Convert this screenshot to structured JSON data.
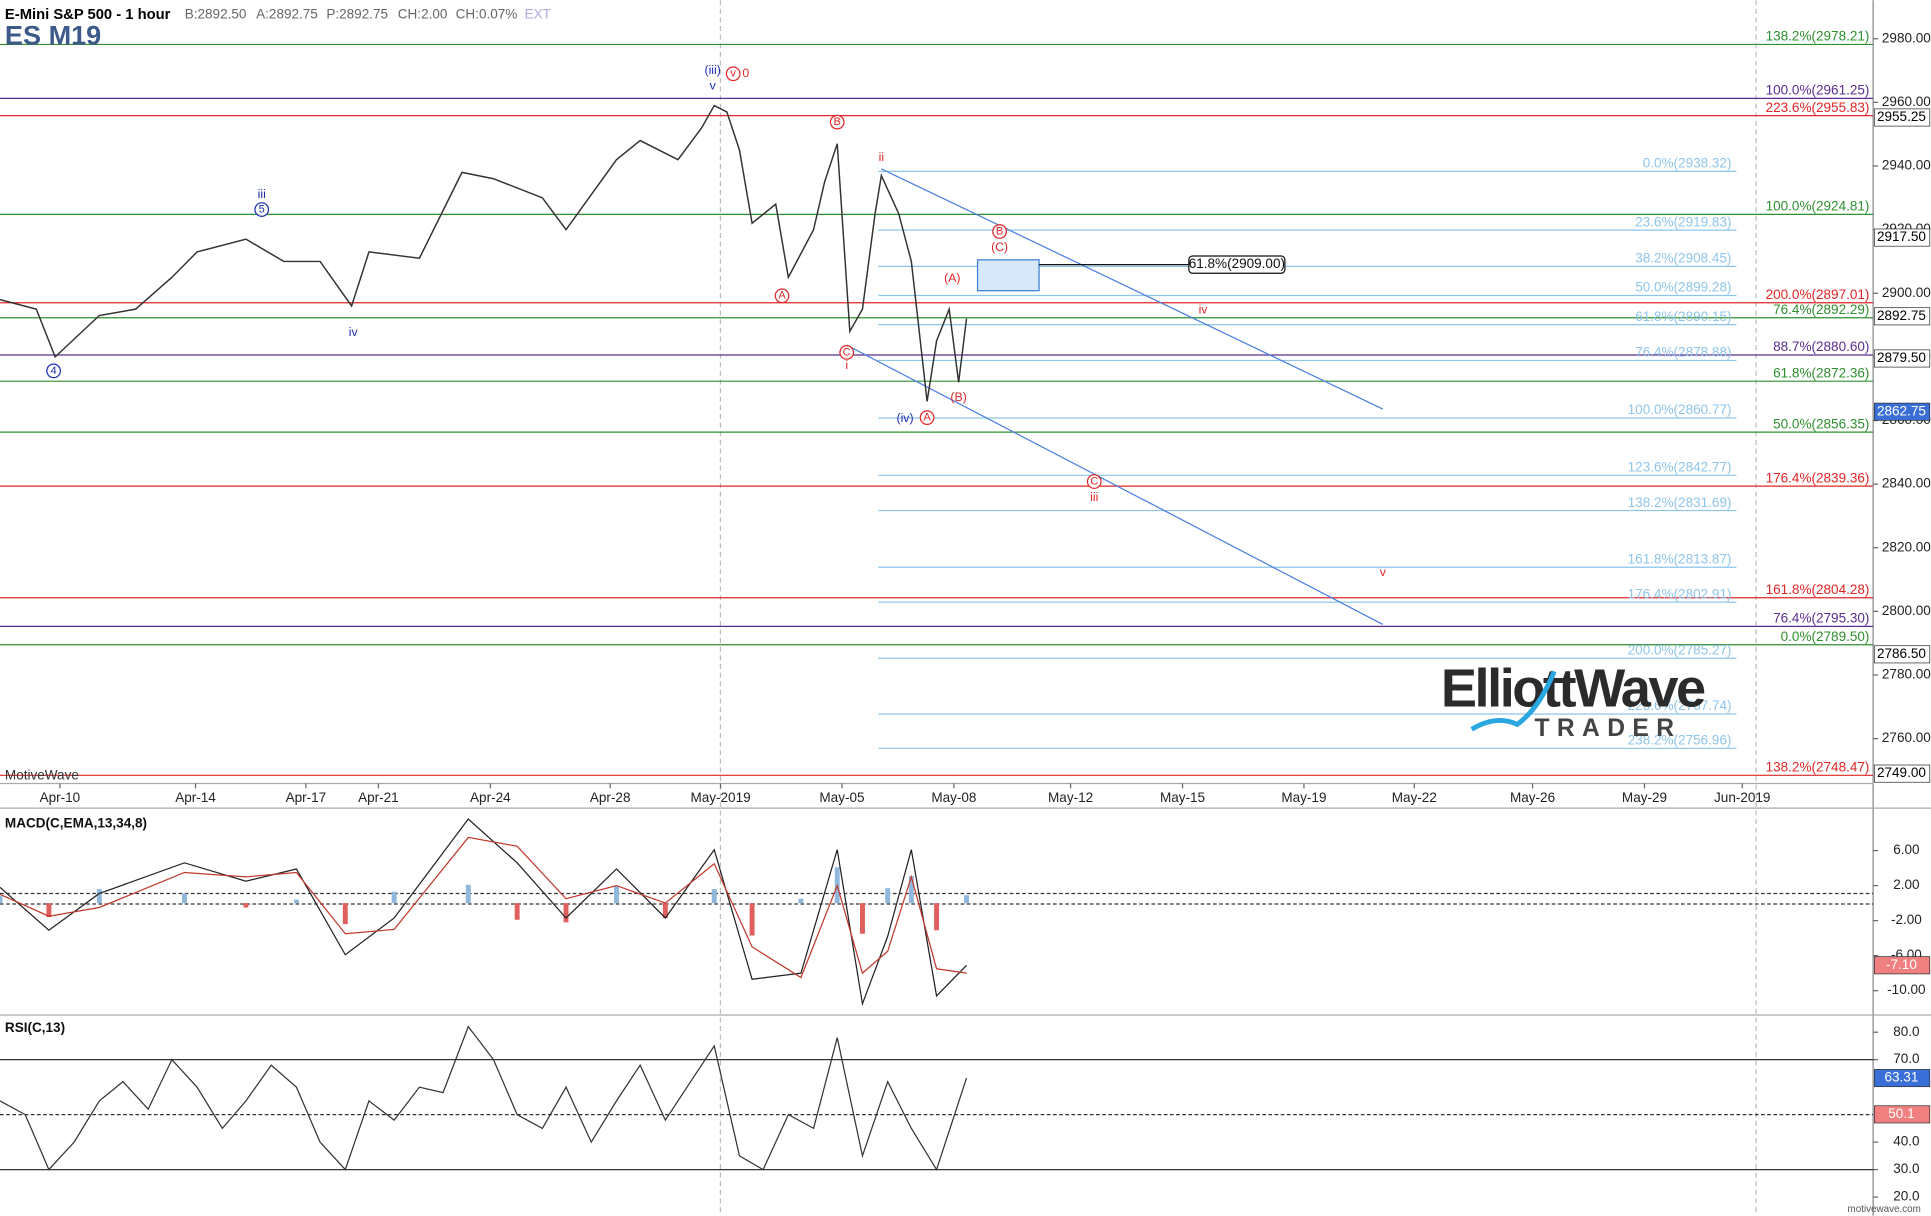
{
  "header": {
    "title": "E-Mini S&P 500 - 1 hour",
    "bid": "B:2892.50",
    "ask": "A:2892.75",
    "price": "P:2892.75",
    "change": "CH:2.00",
    "change_pct": "CH:0.07%",
    "ext": "EXT",
    "symbol": "ES M19",
    "watermark": "MotiveWave",
    "footer": "motivewave.com"
  },
  "logo": {
    "title": "ElliottWave",
    "subtitle": "TRADER"
  },
  "chart_data": [
    {
      "type": "line",
      "xlim": [
        0,
        1188
      ],
      "ylim": [
        2745.9,
        2992.1
      ],
      "yticks": [
        {
          "value": 2760,
          "label": "2760.00"
        },
        {
          "value": 2780,
          "label": "2780.00"
        },
        {
          "value": 2800,
          "label": "2800.00"
        },
        {
          "value": 2820,
          "label": "2820.00"
        },
        {
          "value": 2840,
          "label": "2840.00"
        },
        {
          "value": 2860,
          "label": "2860.00"
        },
        {
          "value": 2880,
          "label": "2880.00"
        },
        {
          "value": 2900,
          "label": "2900.00"
        },
        {
          "value": 2920,
          "label": "2920.00"
        },
        {
          "value": 2940,
          "label": "2940.00"
        },
        {
          "value": 2960,
          "label": "2960.00"
        },
        {
          "value": 2980,
          "label": "2980.00"
        }
      ],
      "xticks": [
        {
          "value": 38,
          "label": "Apr-10"
        },
        {
          "value": 124,
          "label": "Apr-14"
        },
        {
          "value": 194,
          "label": "Apr-17"
        },
        {
          "value": 240,
          "label": "Apr-21"
        },
        {
          "value": 311,
          "label": "Apr-24"
        },
        {
          "value": 387,
          "label": "Apr-28"
        },
        {
          "value": 457,
          "label": "May-2019"
        },
        {
          "value": 534,
          "label": "May-05"
        },
        {
          "value": 605,
          "label": "May-08"
        },
        {
          "value": 679,
          "label": "May-12"
        },
        {
          "value": 750,
          "label": "May-15"
        },
        {
          "value": 827,
          "label": "May-19"
        },
        {
          "value": 897,
          "label": "May-22"
        },
        {
          "value": 972,
          "label": "May-26"
        },
        {
          "value": 1043,
          "label": "May-29"
        },
        {
          "value": 1105,
          "label": "Jun-2019"
        }
      ],
      "series": [
        {
          "color": "#333333",
          "x": [
            0,
            23,
            35,
            63,
            86,
            109,
            125,
            156,
            180,
            203,
            223,
            234,
            266,
            293,
            313,
            344,
            359,
            391,
            406,
            430,
            445,
            453,
            461,
            469,
            477,
            492,
            500,
            516,
            523,
            531,
            539,
            547,
            555,
            559,
            570,
            578,
            588,
            594,
            602,
            608,
            613
          ],
          "values": [
            2898,
            2895,
            2880,
            2893,
            2895,
            2905,
            2913,
            2917,
            2910,
            2910,
            2896,
            2913,
            2911,
            2938,
            2936,
            2930,
            2920,
            2942,
            2948,
            2942,
            2952,
            2959,
            2957,
            2945,
            2922,
            2928,
            2905,
            2920,
            2935,
            2947,
            2888,
            2895,
            2925,
            2937,
            2925,
            2910,
            2866,
            2885,
            2895,
            2872,
            2892
          ]
        }
      ],
      "level_sets": [
        {
          "color": "#2f8f2f",
          "levels": [
            {
              "value": 2978.21,
              "label": "138.2%(2978.21)"
            },
            {
              "value": 2924.81,
              "label": "100.0%(2924.81)"
            },
            {
              "value": 2892.29,
              "label": "76.4%(2892.29)"
            },
            {
              "value": 2872.36,
              "label": "61.8%(2872.36)"
            },
            {
              "value": 2856.35,
              "label": "50.0%(2856.35)"
            },
            {
              "value": 2789.5,
              "label": "0.0%(2789.50)"
            }
          ]
        },
        {
          "color": "#e02626",
          "levels": [
            {
              "value": 2955.83,
              "label": "223.6%(2955.83)"
            },
            {
              "value": 2897.01,
              "label": "200.0%(2897.01)"
            },
            {
              "value": 2839.36,
              "label": "176.4%(2839.36)"
            },
            {
              "value": 2804.28,
              "label": "161.8%(2804.28)"
            },
            {
              "value": 2748.47,
              "label": "138.2%(2748.47)"
            }
          ]
        },
        {
          "color": "#5a2d91",
          "levels": [
            {
              "value": 2961.25,
              "label": "100.0%(2961.25)"
            },
            {
              "value": 2880.6,
              "label": "88.7%(2880.60)"
            },
            {
              "value": 2795.3,
              "label": "76.4%(2795.30)"
            }
          ]
        },
        {
          "color": "#8ec5ea",
          "start": 557,
          "levels": [
            {
              "value": 2938.32,
              "label": "0.0%(2938.32)"
            },
            {
              "value": 2919.83,
              "label": "23.6%(2919.83)"
            },
            {
              "value": 2908.45,
              "label": "38.2%(2908.45)"
            },
            {
              "value": 2899.28,
              "label": "50.0%(2899.28)"
            },
            {
              "value": 2890.15,
              "label": "61.8%(2890.15)"
            },
            {
              "value": 2878.88,
              "label": "76.4%(2878.88)"
            },
            {
              "value": 2860.77,
              "label": "100.0%(2860.77)"
            },
            {
              "value": 2842.77,
              "label": "123.6%(2842.77)"
            },
            {
              "value": 2831.69,
              "label": "138.2%(2831.69)"
            },
            {
              "value": 2813.87,
              "label": "161.8%(2813.87)"
            },
            {
              "value": 2802.91,
              "label": "176.4%(2802.91)"
            },
            {
              "value": 2785.27,
              "label": "200.0%(2785.27)"
            },
            {
              "value": 2767.74,
              "label": "223.6%(2767.74)"
            },
            {
              "value": 2756.96,
              "label": "238.2%(2756.96)"
            }
          ]
        }
      ],
      "price_tags": [
        {
          "value": 2955.25,
          "label": "2955.25",
          "color": "#ffffff"
        },
        {
          "value": 2917.5,
          "label": "2917.50",
          "color": "#ffffff"
        },
        {
          "value": 2892.75,
          "label": "2892.75",
          "color": "#ffffff"
        },
        {
          "value": 2879.5,
          "label": "2879.50",
          "color": "#ffffff"
        },
        {
          "value": 2862.75,
          "label": "2862.75",
          "color": "#3a6fd8"
        },
        {
          "value": 2786.5,
          "label": "2786.50",
          "color": "#ffffff"
        },
        {
          "value": 2749,
          "label": "2749.00",
          "color": "#ffffff"
        }
      ],
      "trend_lines": [
        {
          "color": "#4a7fe0",
          "x": [
            559,
            877
          ],
          "values": [
            2939.1,
            2863.6
          ]
        },
        {
          "color": "#4a7fe0",
          "x": [
            537,
            877
          ],
          "values": [
            2883.7,
            2795.9
          ]
        }
      ],
      "target_box": {
        "x": [
          620,
          659
        ],
        "values": [
          2910.5,
          2900.8
        ],
        "line_end": 754,
        "level": {
          "value": 2909,
          "label": "61.8%(2909.00)"
        }
      },
      "annotations": [
        {
          "text": "(iii)",
          "x": 452,
          "y": 2970,
          "color": "#1c2fb0"
        },
        {
          "text": "v",
          "x": 452,
          "y": 2965,
          "color": "#1c2fb0"
        },
        {
          "text": "v",
          "x": 465,
          "y": 2969,
          "color": "#e02626",
          "circle": true
        },
        {
          "text": "0",
          "x": 473,
          "y": 2969,
          "color": "#e02626"
        },
        {
          "text": "iii",
          "x": 166,
          "y": 2931,
          "color": "#1c2fb0"
        },
        {
          "text": "5",
          "x": 166,
          "y": 2926.3,
          "color": "#1c2fb0",
          "circle": true
        },
        {
          "text": "4",
          "x": 34,
          "y": 2875.6,
          "color": "#1c2fb0",
          "circle": true
        },
        {
          "text": "iv",
          "x": 224,
          "y": 2887.6,
          "color": "#1c2fb0"
        },
        {
          "text": "A",
          "x": 496,
          "y": 2899.2,
          "color": "#e02626",
          "circle": true
        },
        {
          "text": "B",
          "x": 531,
          "y": 2953.8,
          "color": "#e02626",
          "circle": true
        },
        {
          "text": "C",
          "x": 537,
          "y": 2881.4,
          "color": "#e02626",
          "circle": true
        },
        {
          "text": "i",
          "x": 537,
          "y": 2877.2,
          "color": "#e02626"
        },
        {
          "text": "ii",
          "x": 559,
          "y": 2942.6,
          "color": "#e02626"
        },
        {
          "text": "B",
          "x": 634,
          "y": 2919.4,
          "color": "#e02626",
          "circle": true
        },
        {
          "text": "(C)",
          "x": 634,
          "y": 2914.3,
          "color": "#e02626"
        },
        {
          "text": "(A)",
          "x": 604,
          "y": 2904.6,
          "color": "#e02626"
        },
        {
          "text": "(B)",
          "x": 608,
          "y": 2867.1,
          "color": "#e02626"
        },
        {
          "text": "(iv)",
          "x": 574,
          "y": 2860.5,
          "color": "#1c2fb0"
        },
        {
          "text": "A",
          "x": 588,
          "y": 2860.9,
          "color": "#e02626",
          "circle": true
        },
        {
          "text": "iv",
          "x": 763,
          "y": 2894.6,
          "color": "#e02626"
        },
        {
          "text": "C",
          "x": 694,
          "y": 2840.8,
          "color": "#e02626",
          "circle": true
        },
        {
          "text": "iii",
          "x": 694,
          "y": 2835.7,
          "color": "#e02626"
        },
        {
          "text": "v",
          "x": 877,
          "y": 2812.1,
          "color": "#e02626"
        }
      ]
    },
    {
      "type": "macd",
      "title": "MACD(C,EMA,13,34,8)",
      "xlim": [
        0,
        1188
      ],
      "ylim": [
        -12.5,
        10.85
      ],
      "yticks": [
        {
          "value": 6,
          "label": "6.00"
        },
        {
          "value": 2,
          "label": "2.00"
        },
        {
          "value": -2,
          "label": "-2.00"
        },
        {
          "value": -6,
          "label": "-6.00"
        },
        {
          "value": -10,
          "label": "-10.00"
        }
      ],
      "ref_lines": [
        1.1,
        -0.1
      ],
      "x": [
        0,
        31,
        63,
        117,
        156,
        188,
        219,
        250,
        297,
        328,
        359,
        391,
        422,
        453,
        477,
        508,
        531,
        547,
        563,
        578,
        594,
        613
      ],
      "series": [
        {
          "name": "MACD",
          "color": "#222222",
          "values": [
            1.8,
            -3.1,
            1.1,
            4.6,
            2.5,
            3.9,
            -5.9,
            -1.7,
            9.6,
            4.6,
            -1.7,
            3.9,
            -1.7,
            6.1,
            -8.7,
            -8.0,
            6.1,
            -11.5,
            -3.8,
            6.1,
            -10.6,
            -7.1
          ]
        },
        {
          "name": "Signal",
          "color": "#c0392b",
          "values": [
            1.0,
            -1.5,
            -0.5,
            3.5,
            3.0,
            3.5,
            -3.5,
            -3.0,
            7.5,
            6.5,
            0.5,
            2.0,
            0.0,
            4.5,
            -5.0,
            -8.5,
            2.0,
            -8.0,
            -5.5,
            3.0,
            -7.5,
            -8.0
          ]
        },
        {
          "name": "Histogram",
          "color": "#8fb8dc",
          "negative_color": "#e06060",
          "values": [
            0.8,
            -1.6,
            1.6,
            1.1,
            -0.5,
            0.4,
            -2.4,
            1.3,
            2.1,
            -1.9,
            -2.2,
            1.9,
            -1.7,
            1.6,
            -3.7,
            0.5,
            4.1,
            -3.5,
            1.7,
            3.1,
            -3.1,
            0.9
          ]
        }
      ],
      "price_tags": [
        {
          "value": -7.1,
          "label": "-7.10",
          "color": "#f08080"
        }
      ]
    },
    {
      "type": "rsi",
      "title": "RSI(C,13)",
      "xlim": [
        0,
        1188
      ],
      "ylim": [
        15,
        85.8
      ],
      "yticks": [
        {
          "value": 80,
          "label": "80.0"
        },
        {
          "value": 70,
          "label": "70.0"
        },
        {
          "value": 40,
          "label": "40.0"
        },
        {
          "value": 30,
          "label": "30.0"
        },
        {
          "value": 20,
          "label": "20.0"
        }
      ],
      "ref_lines": [
        70,
        50,
        30
      ],
      "x": [
        0,
        16,
        31,
        47,
        63,
        78,
        94,
        109,
        125,
        141,
        156,
        172,
        188,
        203,
        219,
        234,
        250,
        266,
        281,
        297,
        313,
        328,
        344,
        359,
        375,
        391,
        406,
        422,
        438,
        453,
        469,
        484,
        500,
        516,
        531,
        547,
        563,
        578,
        594,
        613
      ],
      "series": [
        {
          "name": "RSI",
          "color": "#333333",
          "values": [
            55,
            50,
            30,
            40,
            55,
            62,
            52,
            70,
            60,
            45,
            55,
            68,
            60,
            40,
            30,
            55,
            48,
            60,
            58,
            82,
            70,
            50,
            45,
            60,
            40,
            55,
            68,
            48,
            62,
            75,
            35,
            30,
            50,
            45,
            78,
            35,
            62,
            45,
            30,
            63.31
          ]
        }
      ],
      "price_tags": [
        {
          "value": 63.31,
          "label": "63.31",
          "color": "#3a6fd8"
        },
        {
          "value": 50.1,
          "label": "50.1",
          "color": "#f08080"
        }
      ]
    }
  ]
}
